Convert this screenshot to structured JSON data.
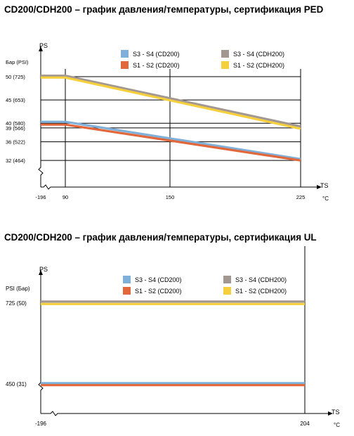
{
  "chart_data": [
    {
      "type": "line",
      "title": "CD200/CDH200 – график давления/температуры, сертификация PED",
      "ylabel": "PS",
      "y_unit_label": "Бар (PSI)",
      "xlabel": "TS",
      "x_unit": "°C",
      "x_ticks": [
        {
          "value": -196,
          "label": "-196"
        },
        {
          "value": 90,
          "label": "90"
        },
        {
          "value": 150,
          "label": "150"
        },
        {
          "value": 225,
          "label": "225"
        }
      ],
      "y_ticks": [
        {
          "value": 50,
          "label": "50  (725)"
        },
        {
          "value": 45,
          "label": "45  (653)"
        },
        {
          "value": 40,
          "label": "40  (580)"
        },
        {
          "value": 39,
          "label": "39  (566)"
        },
        {
          "value": 36,
          "label": "36  (522)"
        },
        {
          "value": 32,
          "label": "32  (464)"
        }
      ],
      "xlim": [
        -196,
        230
      ],
      "ylim": [
        30,
        55
      ],
      "axis_break": true,
      "grid": true,
      "legend_position": "top",
      "series": [
        {
          "name": "S3 - S4   (CD200)",
          "color": "#7fb0da",
          "x": [
            -196,
            90,
            225
          ],
          "y": [
            40.3,
            40.3,
            32.3
          ]
        },
        {
          "name": "S1 - S2   (CD200)",
          "color": "#e2673a",
          "x": [
            -196,
            90,
            225
          ],
          "y": [
            39.7,
            39.7,
            32
          ]
        },
        {
          "name": "S3 - S4   (CDH200)",
          "color": "#a39791",
          "x": [
            -196,
            90,
            225
          ],
          "y": [
            50.2,
            50.2,
            39.3
          ]
        },
        {
          "name": "S1 - S2   (CDH200)",
          "color": "#f6cf3d",
          "x": [
            -196,
            90,
            225
          ],
          "y": [
            49.8,
            49.8,
            38.8
          ]
        }
      ]
    },
    {
      "type": "line",
      "title": "CD200/CDH200 – график давления/температуры, сертификация UL",
      "ylabel": "PS",
      "y_unit_label": "PSI (Бар)",
      "xlabel": "TS",
      "x_unit": "°C",
      "x_ticks": [
        {
          "value": -196,
          "label": "-196"
        },
        {
          "value": 204,
          "label": "204"
        }
      ],
      "y_ticks": [
        {
          "value": 725,
          "label": "725 (50)"
        },
        {
          "value": 450,
          "label": "450 (31)"
        }
      ],
      "xlim": [
        -196,
        230
      ],
      "ylim": [
        0,
        900
      ],
      "axis_break": true,
      "grid": false,
      "legend_position": "top",
      "series": [
        {
          "name": "S3 - S4   (CD200)",
          "color": "#7fb0da",
          "x": [
            -196,
            204
          ],
          "y": [
            453,
            453
          ]
        },
        {
          "name": "S1 - S2   (CD200)",
          "color": "#e2673a",
          "x": [
            -196,
            204
          ],
          "y": [
            446,
            446
          ]
        },
        {
          "name": "S3 - S4   (CDH200)",
          "color": "#a39791",
          "x": [
            -196,
            204
          ],
          "y": [
            730,
            730
          ]
        },
        {
          "name": "S1 - S2   (CDH200)",
          "color": "#f6cf3d",
          "x": [
            -196,
            204
          ],
          "y": [
            722,
            722
          ]
        }
      ]
    }
  ]
}
